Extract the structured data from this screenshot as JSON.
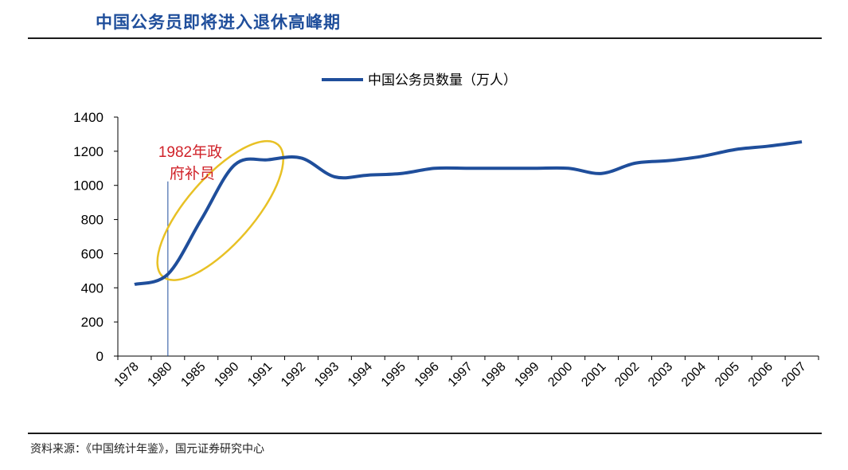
{
  "title": "中国公务员即将进入退休高峰期",
  "source": "资料来源：《中国统计年鉴》，国元证券研究中心",
  "colors": {
    "line": "#1f4e9b",
    "highlight": "#e8c125",
    "annotation": "#d0232a",
    "title": "#1f4e9b"
  },
  "chart_data": {
    "type": "line",
    "categories": [
      "1978",
      "1980",
      "1985",
      "1990",
      "1991",
      "1992",
      "1993",
      "1994",
      "1995",
      "1996",
      "1997",
      "1998",
      "1999",
      "2000",
      "2001",
      "2002",
      "2003",
      "2004",
      "2005",
      "2006",
      "2007"
    ],
    "series": [
      {
        "name": "中国公务员数量（万人）",
        "values": [
          420,
          480,
          800,
          1120,
          1150,
          1160,
          1050,
          1060,
          1070,
          1100,
          1100,
          1100,
          1100,
          1100,
          1070,
          1130,
          1145,
          1170,
          1210,
          1230,
          1255
        ]
      }
    ],
    "ylim": [
      0,
      1400
    ],
    "yticks": [
      "0",
      "200",
      "400",
      "600",
      "800",
      "1000",
      "1200",
      "1400"
    ],
    "legend_position": "top",
    "annotation": {
      "line1": "1982年政",
      "line2": "府补员",
      "year": "1980"
    }
  }
}
